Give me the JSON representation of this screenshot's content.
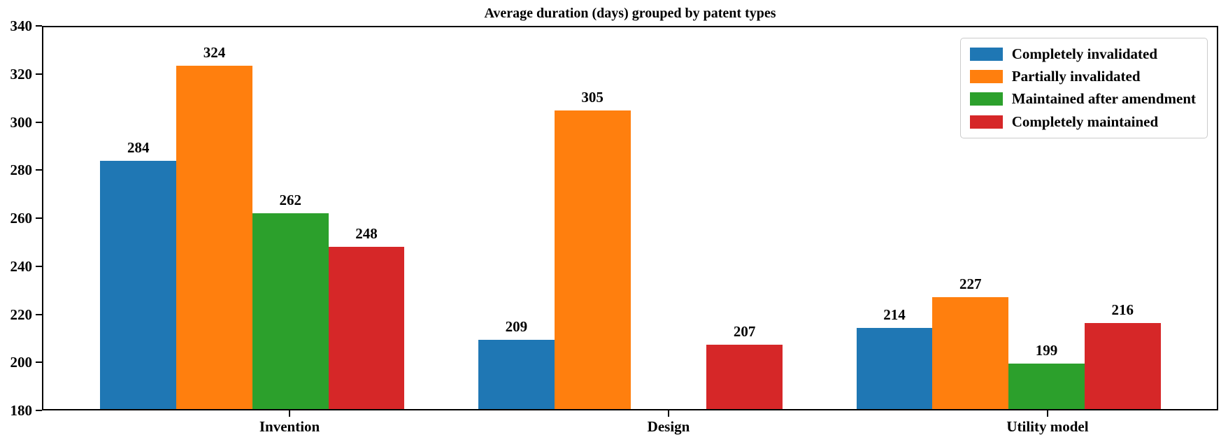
{
  "chart_data": {
    "type": "bar",
    "title": "Average duration (days) grouped by patent types",
    "categories": [
      "Invention",
      "Design",
      "Utility model"
    ],
    "series": [
      {
        "name": "Completely invalidated",
        "color": "#1f77b4",
        "values": [
          284,
          209,
          214
        ]
      },
      {
        "name": "Partially invalidated",
        "color": "#ff7f0e",
        "values": [
          324,
          305,
          227
        ]
      },
      {
        "name": "Maintained after amendment",
        "color": "#2ca02c",
        "values": [
          262,
          null,
          199
        ]
      },
      {
        "name": "Completely maintained",
        "color": "#d62728",
        "values": [
          248,
          207,
          216
        ]
      }
    ],
    "ylim": [
      180,
      340
    ],
    "yticks": [
      180,
      200,
      220,
      240,
      260,
      280,
      300,
      320,
      340
    ],
    "bar_labels": true,
    "grid": false,
    "legend_position": "upper right",
    "xlabel": "",
    "ylabel": ""
  }
}
